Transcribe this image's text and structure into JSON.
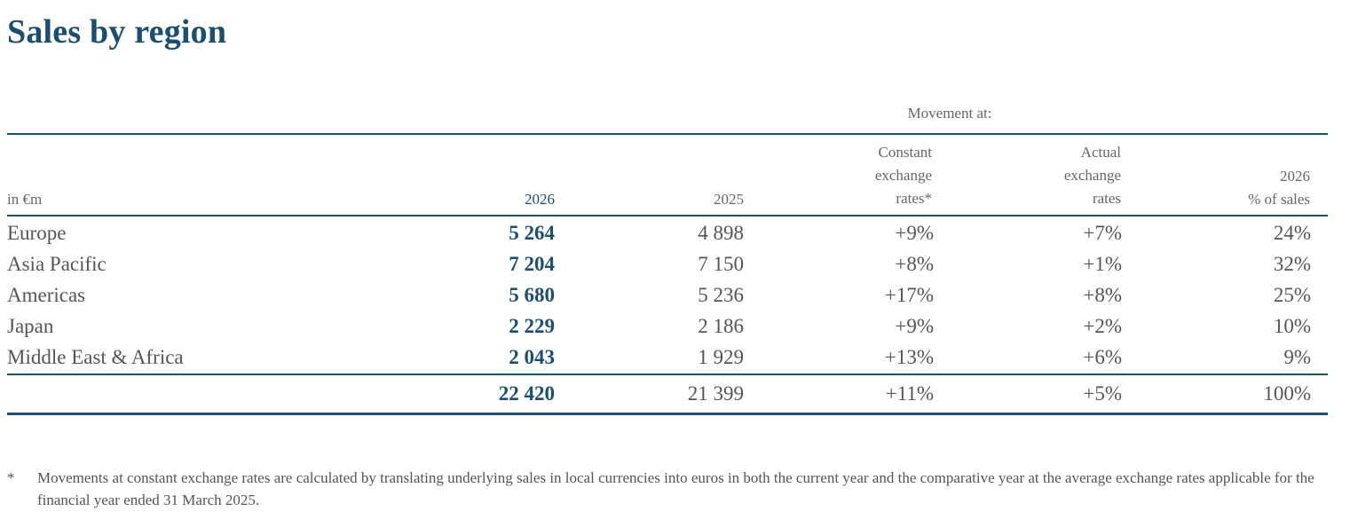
{
  "title": "Sales by region",
  "movement_label": "Movement at:",
  "headers": {
    "units": "in €m",
    "col_2026": "2026",
    "col_2025": "2025",
    "constant": [
      "Constant",
      "exchange",
      "rates*"
    ],
    "actual": [
      "Actual",
      "exchange",
      "rates"
    ],
    "pct_of_sales": [
      "2026",
      "% of sales"
    ]
  },
  "rows": [
    {
      "region": "Europe",
      "y2026": "5 264",
      "y2025": "4 898",
      "constant": "+9%",
      "actual": "+7%",
      "pct": "24%"
    },
    {
      "region": "Asia Pacific",
      "y2026": "7 204",
      "y2025": "7 150",
      "constant": "+8%",
      "actual": "+1%",
      "pct": "32%"
    },
    {
      "region": "Americas",
      "y2026": "5 680",
      "y2025": "5 236",
      "constant": "+17%",
      "actual": "+8%",
      "pct": "25%"
    },
    {
      "region": "Japan",
      "y2026": "2 229",
      "y2025": "2 186",
      "constant": "+9%",
      "actual": "+2%",
      "pct": "10%"
    },
    {
      "region": "Middle East & Africa",
      "y2026": "2 043",
      "y2025": "1 929",
      "constant": "+13%",
      "actual": "+6%",
      "pct": "9%"
    }
  ],
  "total": {
    "region": "",
    "y2026": "22 420",
    "y2025": "21 399",
    "constant": "+11%",
    "actual": "+5%",
    "pct": "100%"
  },
  "footnote": {
    "mark": "*",
    "text": "Movements at constant exchange rates are calculated by translating underlying sales in local currencies into euros in both the current year and the comparative year at the average exchange rates applicable for the financial year ended 31 March 2025."
  },
  "colors": {
    "accent": "#1c4f6e",
    "text": "#555555"
  }
}
